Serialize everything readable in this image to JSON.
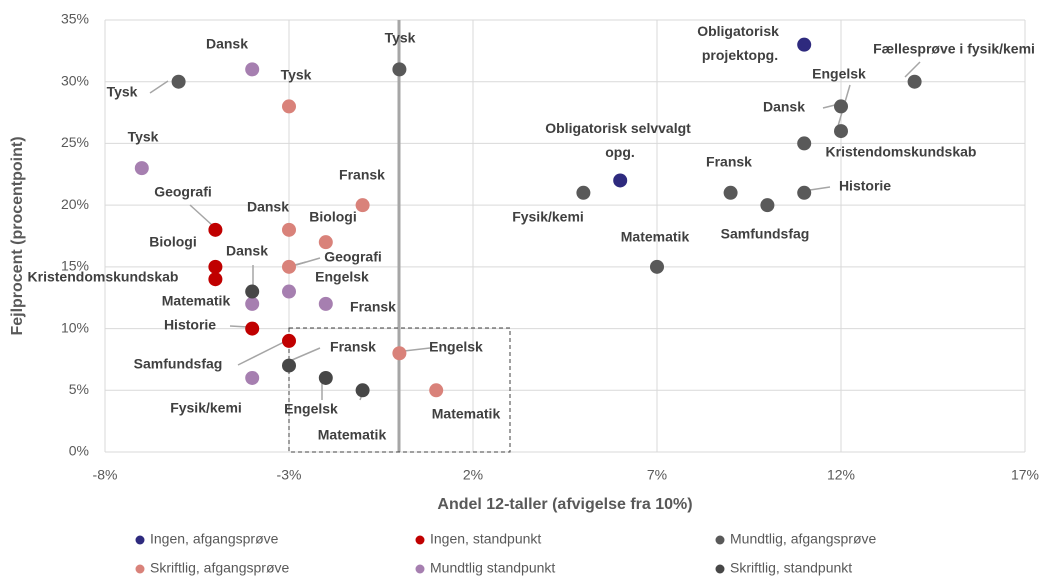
{
  "chart_data": {
    "type": "scatter",
    "x_label": "Andel 12-taller (afvigelse fra 10%)",
    "y_label": "Fejlprocent (procentpoint)",
    "xlim": [
      -8,
      17
    ],
    "xticks": [
      {
        "value": -8,
        "label": "-8%"
      },
      {
        "value": -3,
        "label": "-3%"
      },
      {
        "value": 2,
        "label": "2%"
      },
      {
        "value": 7,
        "label": "7%"
      },
      {
        "value": 12,
        "label": "12%"
      },
      {
        "value": 17,
        "label": "17%"
      }
    ],
    "ylim": [
      0,
      35
    ],
    "yticks": [
      {
        "value": 0,
        "label": "0%"
      },
      {
        "value": 5,
        "label": "5%"
      },
      {
        "value": 10,
        "label": "10%"
      },
      {
        "value": 15,
        "label": "15%"
      },
      {
        "value": 20,
        "label": "20%"
      },
      {
        "value": 25,
        "label": "25%"
      },
      {
        "value": 30,
        "label": "30%"
      },
      {
        "value": 35,
        "label": "35%"
      }
    ],
    "grid": true,
    "legend": "bottom",
    "series": [
      {
        "name": "Ingen, afgangsprøve",
        "color": "#2e2a7e",
        "x": [
          11,
          6
        ],
        "values": [
          33,
          22
        ],
        "labels": [
          "Obligatorisk projektopg.",
          "Obligatorisk selvvalgt opg."
        ]
      },
      {
        "name": "Ingen, standpunkt",
        "color": "#c00000",
        "x": [
          -5,
          -5,
          -5,
          -4,
          -3
        ],
        "values": [
          18,
          15,
          14,
          10,
          9
        ],
        "labels": [
          "Geografi",
          "Biologi",
          "Kristendomskundskab",
          "Historie",
          "Samfundsfag"
        ]
      },
      {
        "name": "Mundtlig, afgangsprøve",
        "color": "#595959",
        "x": [
          -6,
          0,
          5,
          7,
          9,
          10,
          11,
          11,
          12,
          12,
          14
        ],
        "values": [
          30,
          31,
          21,
          15,
          21,
          20,
          21,
          25,
          28,
          26,
          30
        ],
        "labels": [
          "Tysk",
          "Tysk",
          "Fysik/kemi",
          "Matematik",
          "Fransk",
          "Samfundsfag",
          "Historie",
          "Kristendomskundskab",
          "Dansk",
          "Engelsk",
          "Fællesprøve i fysik/kemi"
        ]
      },
      {
        "name": "Skriftlig, afgangsprøve",
        "color": "#d9827a",
        "x": [
          -3,
          -1,
          -3,
          -2,
          -3,
          0,
          1
        ],
        "values": [
          28,
          20,
          18,
          17,
          15,
          8,
          5
        ],
        "labels": [
          "Tysk",
          "Fransk",
          "Dansk",
          "Biologi",
          "Geografi",
          "Engelsk",
          "Matematik"
        ]
      },
      {
        "name": "Mundtlig standpunkt",
        "color": "#a67fb0",
        "x": [
          -4,
          -7,
          -3,
          -4,
          -2,
          -4
        ],
        "values": [
          31,
          23,
          13,
          12,
          12,
          6
        ],
        "labels": [
          "Dansk",
          "Tysk",
          "Engelsk",
          "Matematik",
          "Fransk",
          "Fysik/kemi"
        ]
      },
      {
        "name": "Skriftlig, standpunkt",
        "color": "#474747",
        "x": [
          -4,
          -3,
          -2,
          -1
        ],
        "values": [
          13,
          7,
          6,
          5
        ],
        "labels": [
          "Dansk",
          "Fransk",
          "Engelsk",
          "Matematik"
        ]
      }
    ]
  }
}
